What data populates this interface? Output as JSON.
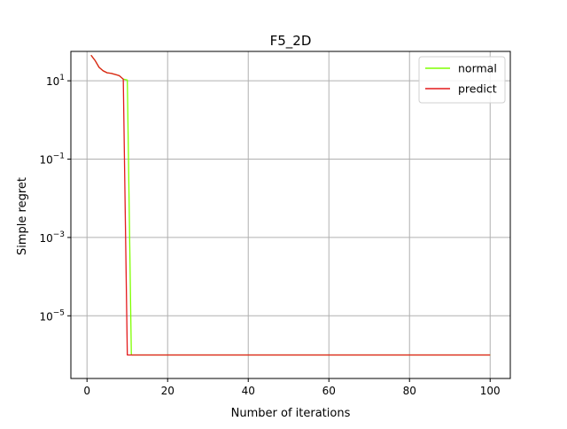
{
  "chart_data": {
    "type": "line",
    "title": "F5_2D",
    "xlabel": "Number of iterations",
    "ylabel": "Simple regret",
    "xlim": [
      -4,
      105
    ],
    "ylim_log10": [
      -6.6,
      1.75
    ],
    "y_scale": "log",
    "grid": true,
    "legend_position": "top-right",
    "x_ticks": [
      0,
      20,
      40,
      60,
      80,
      100
    ],
    "x_tick_labels": [
      "0",
      "20",
      "40",
      "60",
      "80",
      "100"
    ],
    "y_ticks_log10": [
      1,
      -1,
      -3,
      -5
    ],
    "y_tick_labels": [
      {
        "base": "10",
        "exp": "1"
      },
      {
        "base": "10",
        "exp": "−1"
      },
      {
        "base": "10",
        "exp": "−3"
      },
      {
        "base": "10",
        "exp": "−5"
      }
    ],
    "series": [
      {
        "name": "normal",
        "color": "#7fff00",
        "x": [
          1,
          2,
          3,
          4,
          5,
          6,
          7,
          8,
          9,
          10,
          11,
          100
        ],
        "y": [
          45,
          33,
          22,
          18,
          16,
          15.5,
          14.5,
          13.5,
          11,
          10.5,
          1e-06,
          1e-06
        ]
      },
      {
        "name": "predict",
        "color": "#e31a1c",
        "x": [
          1,
          2,
          3,
          4,
          5,
          6,
          7,
          8,
          9,
          10,
          100
        ],
        "y": [
          45,
          33,
          22,
          18,
          16,
          15.5,
          14.5,
          13.5,
          11,
          1e-06,
          1e-06
        ]
      }
    ]
  }
}
